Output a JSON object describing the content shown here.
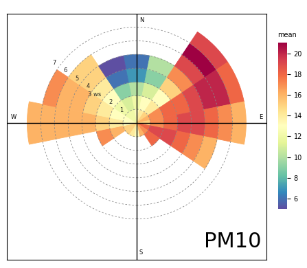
{
  "chart_data": {
    "type": "polar_heatmap",
    "annotation": "PM10",
    "compass": [
      "N",
      "E",
      "S",
      "W"
    ],
    "xlim": [
      -9.5,
      9.5
    ],
    "ylim": [
      -10,
      8
    ],
    "tick_labels": false,
    "grid": true,
    "ws_ticks": [
      1,
      2,
      {
        "value": 3,
        "label": "3 ws"
      },
      4,
      5,
      6,
      7
    ],
    "directions": [
      0,
      22.5,
      45,
      67.5,
      90,
      112.5,
      135,
      157.5,
      180,
      202.5,
      225,
      247.5,
      270,
      292.5,
      315,
      337.5
    ],
    "speed_bins": [
      0,
      1,
      2,
      3,
      4,
      5,
      6,
      7,
      8
    ],
    "cells": [
      [
        13,
        12,
        10,
        7,
        6,
        null,
        null,
        null
      ],
      [
        14,
        13,
        11,
        9,
        10,
        null,
        null,
        null
      ],
      [
        15,
        14,
        13,
        15,
        17,
        19,
        21,
        19
      ],
      [
        16,
        17,
        18,
        18,
        19,
        20,
        20,
        18
      ],
      [
        15,
        17,
        18,
        19,
        19,
        18,
        17,
        16
      ],
      [
        18,
        19,
        19,
        18,
        17,
        16,
        null,
        null
      ],
      [
        17,
        18,
        null,
        null,
        null,
        null,
        null,
        null
      ],
      [
        16,
        null,
        null,
        null,
        null,
        null,
        null,
        null
      ],
      [
        13,
        null,
        null,
        null,
        null,
        null,
        null,
        null
      ],
      [
        14,
        null,
        null,
        null,
        null,
        null,
        null,
        null
      ],
      [
        15,
        null,
        null,
        null,
        null,
        null,
        null,
        null
      ],
      [
        15,
        16,
        17,
        null,
        null,
        null,
        null,
        null
      ],
      [
        13,
        14,
        15,
        16,
        16,
        16,
        16,
        16
      ],
      [
        13,
        13,
        14,
        15,
        16,
        16,
        17,
        null
      ],
      [
        12,
        12,
        13,
        14,
        15,
        15,
        null,
        null
      ],
      [
        12,
        11,
        9,
        6,
        5,
        null,
        null,
        null
      ]
    ],
    "colorbar": {
      "title": "mean",
      "range": [
        5,
        21
      ],
      "ticks": [
        6,
        8,
        10,
        12,
        14,
        16,
        18,
        20
      ]
    }
  }
}
